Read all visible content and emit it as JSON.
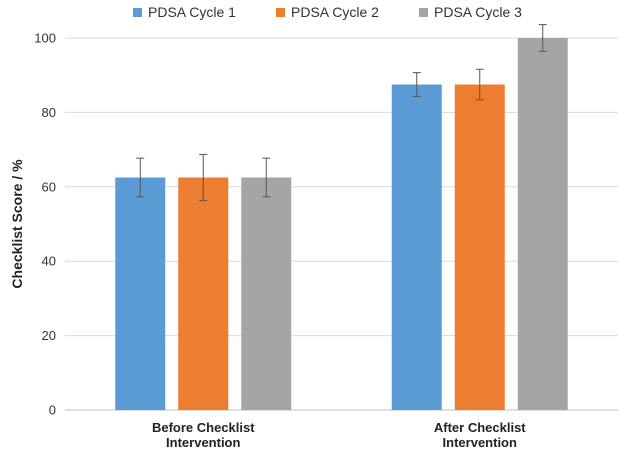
{
  "chart_data": {
    "type": "bar",
    "title": "",
    "xlabel": "",
    "ylabel": "Checklist Score / %",
    "ylim": [
      0,
      100
    ],
    "yticks": [
      0,
      20,
      40,
      60,
      80,
      100
    ],
    "grid": true,
    "legend_position": "top-center",
    "categories": [
      [
        "Before Checklist",
        "Intervention"
      ],
      [
        "After Checklist",
        "Intervention"
      ]
    ],
    "series": [
      {
        "name": "PDSA Cycle 1",
        "color": "#5b9bd5",
        "values": [
          62.5,
          87.5
        ],
        "errors": [
          [
            57.3,
            67.7
          ],
          [
            84.3,
            90.7
          ]
        ]
      },
      {
        "name": "PDSA Cycle 2",
        "color": "#ed7d31",
        "values": [
          62.5,
          87.5
        ],
        "errors": [
          [
            56.3,
            68.7
          ],
          [
            83.4,
            91.6
          ]
        ]
      },
      {
        "name": "PDSA Cycle 3",
        "color": "#a5a5a5",
        "values": [
          62.5,
          100
        ],
        "errors": [
          [
            57.3,
            67.7
          ],
          [
            96.4,
            103.6
          ]
        ]
      }
    ]
  }
}
